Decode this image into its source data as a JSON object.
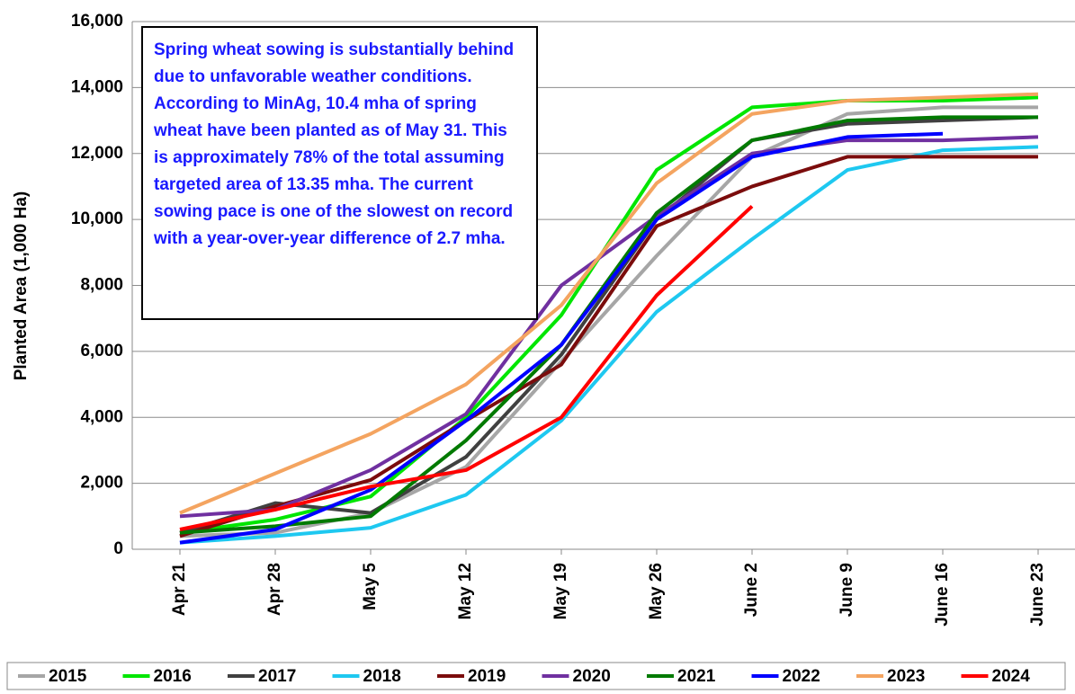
{
  "chart_data": {
    "type": "line",
    "y_label": "Planted Area (1,000 Ha)",
    "annotation": "Spring wheat sowing is substantially behind due to unfavorable weather conditions. According to MinAg, 10.4 mha of spring wheat have been planted as of May 31. This is approximately 78% of the total assuming targeted area of 13.35 mha. The current sowing pace is one of the slowest on record with a year-over-year difference of 2.7 mha.",
    "categories": [
      "Apr 21",
      "Apr 28",
      "May 5",
      "May 12",
      "May 19",
      "May 26",
      "June 2",
      "June 9",
      "June 16",
      "June 23"
    ],
    "ylim": [
      0,
      16000
    ],
    "yticks": [
      {
        "value": 0,
        "label": "0"
      },
      {
        "value": 2000,
        "label": "2,000"
      },
      {
        "value": 4000,
        "label": "4,000"
      },
      {
        "value": 6000,
        "label": "6,000"
      },
      {
        "value": 8000,
        "label": "8,000"
      },
      {
        "value": 10000,
        "label": "10,000"
      },
      {
        "value": 12000,
        "label": "12,000"
      },
      {
        "value": 14000,
        "label": "14,000"
      },
      {
        "value": 16000,
        "label": "16,000"
      }
    ],
    "grid": true,
    "legend": "bottom",
    "series": [
      {
        "name": "2015",
        "color": "#a6a6a6",
        "values": [
          400,
          500,
          1100,
          2500,
          5700,
          8900,
          11900,
          13200,
          13400,
          13400
        ]
      },
      {
        "name": "2016",
        "color": "#00e600",
        "values": [
          500,
          900,
          1600,
          4000,
          7100,
          11500,
          13400,
          13600,
          13600,
          13700
        ]
      },
      {
        "name": "2017",
        "color": "#404040",
        "values": [
          500,
          1400,
          1100,
          2800,
          5900,
          10000,
          12400,
          12900,
          13000,
          13100
        ]
      },
      {
        "name": "2018",
        "color": "#1ec8f0",
        "values": [
          200,
          400,
          650,
          1650,
          3900,
          7200,
          9400,
          11500,
          12100,
          12200
        ]
      },
      {
        "name": "2019",
        "color": "#7b0c0c",
        "values": [
          400,
          1300,
          2100,
          3900,
          5600,
          9800,
          11000,
          11900,
          11900,
          11900
        ]
      },
      {
        "name": "2020",
        "color": "#7030a0",
        "values": [
          1000,
          1200,
          2400,
          4100,
          8000,
          10100,
          12000,
          12400,
          12400,
          12500
        ]
      },
      {
        "name": "2021",
        "color": "#007a00",
        "values": [
          500,
          700,
          1000,
          3300,
          6200,
          10200,
          12400,
          13000,
          13100,
          13100
        ]
      },
      {
        "name": "2022",
        "color": "#0000ff",
        "values": [
          200,
          600,
          1800,
          3900,
          6200,
          10000,
          11900,
          12500,
          12600,
          null
        ]
      },
      {
        "name": "2023",
        "color": "#f4a460",
        "values": [
          1100,
          2300,
          3500,
          5000,
          7400,
          11100,
          13200,
          13600,
          13700,
          13800
        ]
      },
      {
        "name": "2024",
        "color": "#ff0000",
        "values": [
          600,
          1200,
          1900,
          2400,
          4000,
          7700,
          10400,
          null,
          null,
          null
        ]
      }
    ]
  }
}
